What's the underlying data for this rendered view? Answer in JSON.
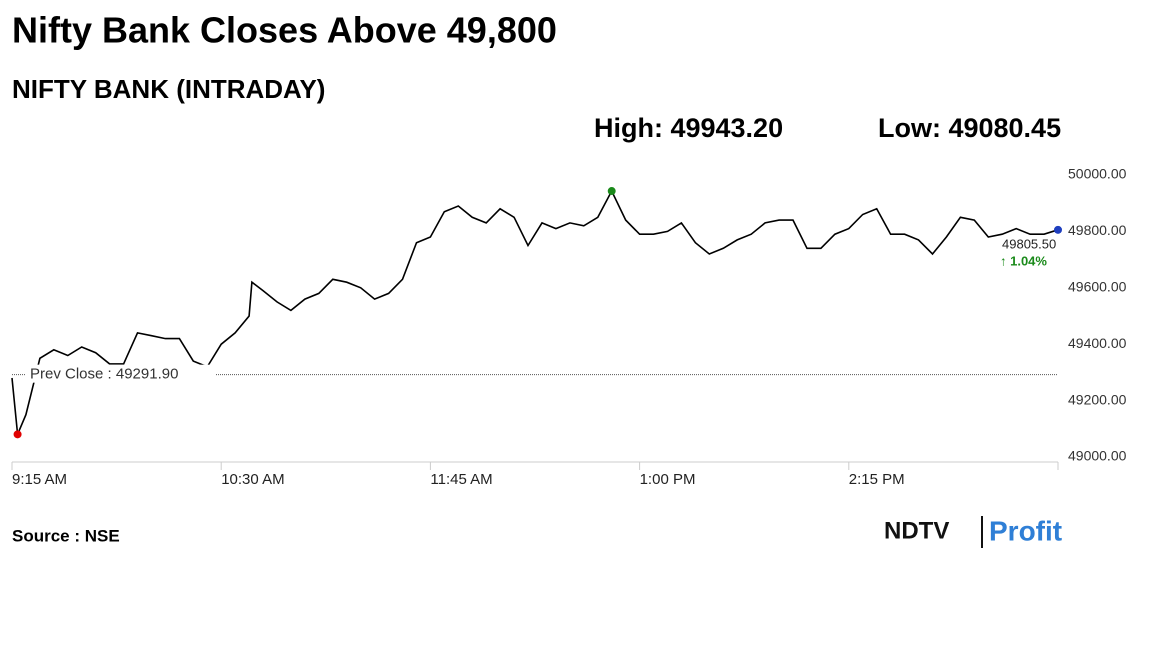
{
  "chart_data": {
    "type": "line",
    "title": "Nifty Bank Closes Above 49,800",
    "subtitle": "NIFTY BANK (INTRADAY)",
    "high": {
      "x": "12:50",
      "value": 49943.2,
      "label": "High: 49943.20",
      "color": "#1a8a1a"
    },
    "low": {
      "x": "09:17",
      "value": 49080.45,
      "label": "Low: 49080.45",
      "color": "#e00000"
    },
    "last": {
      "x": "15:30",
      "value": 49805.5,
      "label": "49805.50",
      "change": "↑ 1.04%",
      "color": "#1f3fbf"
    },
    "prev_close": {
      "value": 49291.9,
      "label": "Prev Close : 49291.90"
    },
    "source": "Source : NSE",
    "brand": [
      "NDTV",
      "Profit"
    ],
    "xlim": [
      "09:15",
      "15:30"
    ],
    "xticks": [
      {
        "value": "09:15",
        "label": "9:15 AM"
      },
      {
        "value": "10:30",
        "label": "10:30 AM"
      },
      {
        "value": "11:45",
        "label": "11:45 AM"
      },
      {
        "value": "13:00",
        "label": "1:00 PM"
      },
      {
        "value": "14:15",
        "label": "2:15 PM"
      },
      {
        "value": "15:30",
        "label": null
      }
    ],
    "ylim": [
      49000,
      50000
    ],
    "yticks": [
      {
        "value": 49000,
        "label": "49000.00"
      },
      {
        "value": 49200,
        "label": "49200.00"
      },
      {
        "value": 49400,
        "label": "49400.00"
      },
      {
        "value": 49600,
        "label": "49600.00"
      },
      {
        "value": 49800,
        "label": "49800.00"
      },
      {
        "value": 50000,
        "label": "50000.00"
      }
    ],
    "series": [
      {
        "name": "NIFTY BANK",
        "color": "#000000",
        "x": [
          "09:15",
          "09:17",
          "09:20",
          "09:25",
          "09:30",
          "09:35",
          "09:40",
          "09:45",
          "09:50",
          "09:55",
          "10:00",
          "10:05",
          "10:10",
          "10:15",
          "10:20",
          "10:25",
          "10:30",
          "10:35",
          "10:40",
          "10:41",
          "10:45",
          "10:50",
          "10:55",
          "11:00",
          "11:05",
          "11:10",
          "11:15",
          "11:20",
          "11:25",
          "11:30",
          "11:35",
          "11:40",
          "11:45",
          "11:50",
          "11:55",
          "12:00",
          "12:05",
          "12:10",
          "12:15",
          "12:20",
          "12:25",
          "12:30",
          "12:35",
          "12:40",
          "12:45",
          "12:50",
          "12:55",
          "13:00",
          "13:05",
          "13:10",
          "13:15",
          "13:20",
          "13:25",
          "13:30",
          "13:35",
          "13:40",
          "13:45",
          "13:50",
          "13:55",
          "14:00",
          "14:05",
          "14:10",
          "14:15",
          "14:20",
          "14:25",
          "14:30",
          "14:35",
          "14:40",
          "14:45",
          "14:50",
          "14:55",
          "15:00",
          "15:05",
          "15:10",
          "15:15",
          "15:20",
          "15:25",
          "15:30"
        ],
        "values": [
          49280,
          49080.45,
          49150,
          49350,
          49380,
          49360,
          49390,
          49370,
          49330,
          49330,
          49440,
          49430,
          49420,
          49420,
          49340,
          49320,
          49400,
          49440,
          49500,
          49620,
          49590,
          49550,
          49520,
          49560,
          49580,
          49630,
          49620,
          49600,
          49560,
          49580,
          49630,
          49760,
          49780,
          49870,
          49890,
          49850,
          49830,
          49880,
          49850,
          49750,
          49830,
          49810,
          49830,
          49820,
          49850,
          49943.2,
          49840,
          49790,
          49790,
          49800,
          49830,
          49760,
          49720,
          49740,
          49770,
          49790,
          49830,
          49840,
          49840,
          49740,
          49740,
          49790,
          49810,
          49860,
          49880,
          49790,
          49790,
          49770,
          49720,
          49780,
          49850,
          49840,
          49780,
          49790,
          49810,
          49790,
          49790,
          49805.5
        ]
      }
    ]
  }
}
